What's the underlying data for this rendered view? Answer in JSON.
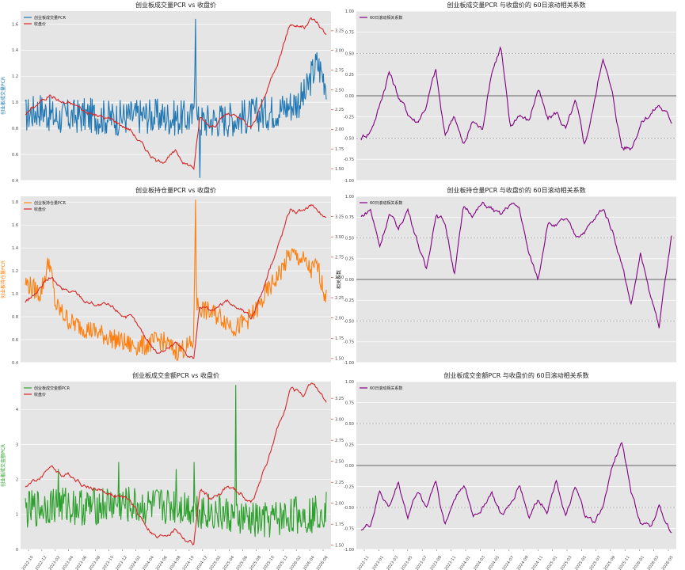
{
  "chart_data": [
    {
      "type": "line",
      "title": "创业板成交量PCR vs 收盘价",
      "ylabel_left": "创业板成交量PCR",
      "ylabel_right": "",
      "color_left": "#1f77b4",
      "color_right": "#d62728",
      "ylim_left": [
        0.4,
        1.7
      ],
      "ylim_right": [
        1.35,
        3.5
      ],
      "yticks_left": [
        "0.4",
        "0.6",
        "0.8",
        "1.0",
        "1.2",
        "1.4",
        "1.6"
      ],
      "yticks_right": [
        "1.50",
        "1.75",
        "2.00",
        "2.25",
        "2.50",
        "2.75",
        "3.00",
        "3.25"
      ],
      "legend": [
        "创业板成交量PCR",
        "收盘价"
      ],
      "series_left": {
        "name": "创业板成交量PCR",
        "kind": "noisy",
        "amplitude": 0.14,
        "x": [
          0,
          0.05,
          0.1,
          0.2,
          0.3,
          0.4,
          0.5,
          0.56,
          0.565,
          0.57,
          0.6,
          0.7,
          0.8,
          0.85,
          0.9,
          0.93,
          0.95,
          0.97,
          1
        ],
        "y": [
          0.9,
          0.95,
          0.88,
          0.9,
          0.88,
          0.9,
          0.88,
          0.88,
          1.6,
          0.85,
          0.86,
          0.88,
          0.92,
          0.95,
          1.0,
          1.05,
          1.2,
          1.3,
          1.15
        ],
        "spikes": [
          [
            0.565,
            1.64
          ],
          [
            0.58,
            0.42
          ]
        ]
      },
      "series_right": {
        "name": "收盘价",
        "kind": "smooth",
        "amplitude": 0.04,
        "x": [
          0,
          0.05,
          0.08,
          0.12,
          0.17,
          0.2,
          0.3,
          0.35,
          0.4,
          0.44,
          0.5,
          0.53,
          0.56,
          0.58,
          0.62,
          0.67,
          0.72,
          0.75,
          0.8,
          0.85,
          0.88,
          0.93,
          0.95,
          0.97,
          1
        ],
        "y": [
          2.2,
          2.35,
          2.45,
          2.35,
          2.3,
          2.22,
          2.1,
          2.0,
          1.75,
          1.58,
          1.7,
          1.58,
          1.52,
          2.15,
          2.05,
          2.2,
          2.1,
          2.0,
          2.45,
          3.0,
          3.35,
          3.3,
          3.4,
          3.35,
          3.2
        ]
      }
    },
    {
      "type": "line",
      "title": "创业板成交量PCR 与收盘价的 60日滚动相关系数",
      "ylabel_left": "",
      "color_left": "#800080",
      "ylim_left": [
        -1.0,
        1.0
      ],
      "yticks_left": [
        "-1.00",
        "-0.75",
        "-0.50",
        "-0.25",
        "0.00",
        "0.25",
        "0.50",
        "0.75",
        "1.00"
      ],
      "reference_lines": [
        0.5,
        0.0,
        -0.5
      ],
      "legend": [
        "60日滚动相关系数"
      ],
      "series_left": {
        "name": "60日滚动相关系数",
        "kind": "smooth",
        "amplitude": 0.06,
        "x": [
          0,
          0.03,
          0.06,
          0.09,
          0.12,
          0.15,
          0.18,
          0.21,
          0.24,
          0.27,
          0.3,
          0.33,
          0.36,
          0.39,
          0.42,
          0.45,
          0.48,
          0.51,
          0.54,
          0.57,
          0.6,
          0.63,
          0.66,
          0.69,
          0.72,
          0.75,
          0.78,
          0.81,
          0.84,
          0.87,
          0.9,
          0.93,
          0.96,
          1
        ],
        "y": [
          -0.5,
          -0.4,
          -0.1,
          0.3,
          0.0,
          -0.2,
          -0.3,
          -0.1,
          0.3,
          -0.5,
          -0.2,
          -0.6,
          -0.3,
          -0.4,
          0.3,
          0.6,
          -0.4,
          -0.2,
          -0.3,
          0.1,
          -0.3,
          -0.2,
          -0.4,
          -0.1,
          -0.6,
          -0.1,
          0.5,
          0.0,
          -0.6,
          -0.6,
          -0.3,
          -0.2,
          -0.1,
          -0.3
        ]
      }
    },
    {
      "type": "line",
      "title": "创业板持仓量PCR vs 收盘价",
      "ylabel_left": "创业板持仓量PCR",
      "color_left": "#ff7f0e",
      "color_right": "#d62728",
      "ylim_left": [
        0.4,
        1.85
      ],
      "ylim_right": [
        1.45,
        3.5
      ],
      "yticks_left": [
        "0.4",
        "0.6",
        "0.8",
        "1.0",
        "1.2",
        "1.4",
        "1.6",
        "1.8"
      ],
      "yticks_right": [
        "1.50",
        "1.75",
        "2.00",
        "2.25",
        "2.50",
        "2.75",
        "3.00",
        "3.25"
      ],
      "legend": [
        "创业板持仓量PCR",
        "收盘价"
      ],
      "series_left": {
        "name": "创业板持仓量PCR",
        "kind": "noisy",
        "amplitude": 0.09,
        "x": [
          0,
          0.05,
          0.08,
          0.1,
          0.15,
          0.2,
          0.25,
          0.3,
          0.35,
          0.4,
          0.45,
          0.5,
          0.55,
          0.56,
          0.565,
          0.57,
          0.6,
          0.65,
          0.7,
          0.75,
          0.78,
          0.8,
          0.85,
          0.88,
          0.92,
          0.95,
          0.97,
          1
        ],
        "y": [
          1.1,
          1.0,
          1.3,
          0.9,
          0.75,
          0.7,
          0.65,
          0.6,
          0.55,
          0.55,
          0.6,
          0.5,
          0.55,
          0.6,
          1.7,
          0.9,
          0.85,
          0.8,
          0.7,
          0.8,
          0.9,
          1.0,
          1.2,
          1.35,
          1.3,
          1.2,
          1.25,
          0.95
        ],
        "spikes": [
          [
            0.565,
            1.82
          ]
        ]
      },
      "series_right": {
        "name": "收盘价",
        "kind": "smooth",
        "amplitude": 0.04,
        "x": [
          0,
          0.05,
          0.08,
          0.12,
          0.17,
          0.2,
          0.3,
          0.35,
          0.4,
          0.44,
          0.5,
          0.53,
          0.56,
          0.58,
          0.62,
          0.67,
          0.72,
          0.75,
          0.8,
          0.85,
          0.88,
          0.93,
          0.95,
          0.97,
          1
        ],
        "y": [
          2.2,
          2.35,
          2.5,
          2.35,
          2.3,
          2.22,
          2.1,
          2.0,
          1.75,
          1.58,
          1.7,
          1.58,
          1.52,
          2.15,
          2.05,
          2.2,
          2.1,
          2.0,
          2.45,
          3.0,
          3.35,
          3.3,
          3.4,
          3.35,
          3.2
        ]
      }
    },
    {
      "type": "line",
      "title": "创业板持仓量PCR 与收盘价的 60日滚动相关系数",
      "ylabel_left": "相关系数",
      "color_left": "#800080",
      "ylim_left": [
        -1.0,
        1.0
      ],
      "yticks_left": [
        "-1.00",
        "-0.75",
        "-0.50",
        "-0.25",
        "0.00",
        "0.25",
        "0.50",
        "0.75",
        "1.00"
      ],
      "reference_lines": [
        0.5,
        0.0,
        -0.5
      ],
      "legend": [
        "60日滚动相关系数"
      ],
      "series_left": {
        "name": "60日滚动相关系数",
        "kind": "smooth",
        "amplitude": 0.05,
        "x": [
          0,
          0.03,
          0.06,
          0.09,
          0.12,
          0.15,
          0.18,
          0.21,
          0.24,
          0.27,
          0.3,
          0.33,
          0.36,
          0.39,
          0.42,
          0.45,
          0.48,
          0.51,
          0.54,
          0.57,
          0.6,
          0.63,
          0.66,
          0.69,
          0.72,
          0.75,
          0.78,
          0.81,
          0.84,
          0.87,
          0.9,
          0.93,
          0.96,
          1
        ],
        "y": [
          0.75,
          0.85,
          0.4,
          0.8,
          0.6,
          0.85,
          0.5,
          0.1,
          0.8,
          0.7,
          0.1,
          0.85,
          0.8,
          0.9,
          0.85,
          0.75,
          0.9,
          0.85,
          0.3,
          0.0,
          0.7,
          0.65,
          0.7,
          0.5,
          0.6,
          0.7,
          0.85,
          0.6,
          0.2,
          -0.3,
          0.3,
          -0.2,
          -0.55,
          0.5
        ]
      }
    },
    {
      "type": "line",
      "title": "创业板成交金额PCR vs 收盘价",
      "ylabel_left": "创业板成交金额PCR",
      "color_left": "#2ca02c",
      "color_right": "#d62728",
      "ylim_left": [
        0,
        4.8
      ],
      "ylim_right": [
        1.45,
        3.45
      ],
      "yticks_left": [
        "0",
        "1",
        "2",
        "3",
        "4"
      ],
      "yticks_right": [
        "1.50",
        "1.75",
        "2.00",
        "2.25",
        "2.50",
        "2.75",
        "3.00",
        "3.25"
      ],
      "legend": [
        "创业板成交金额PCR",
        "收盘价"
      ],
      "xticks": [
        "2022-10",
        "2022-12",
        "2023-02",
        "2023-04",
        "2023-06",
        "2023-08",
        "2023-10",
        "2023-12",
        "2024-02",
        "2024-04",
        "2024-06",
        "2024-08",
        "2024-10",
        "2024-12",
        "2025-02",
        "2025-04",
        "2025-06",
        "2025-08",
        "2025-10",
        "2025-12",
        "2026-02",
        "2026-04",
        "2026-06"
      ],
      "series_left": {
        "name": "创业板成交金额PCR",
        "kind": "noisy",
        "amplitude": 0.55,
        "x": [
          0,
          0.1,
          0.2,
          0.3,
          0.4,
          0.5,
          0.55,
          0.6,
          0.65,
          0.7,
          0.75,
          0.8,
          0.85,
          0.9,
          0.95,
          1
        ],
        "y": [
          1.1,
          1.3,
          1.2,
          1.3,
          1.2,
          1.25,
          1.2,
          1.1,
          1.0,
          0.9,
          0.8,
          0.8,
          0.9,
          1.0,
          1.0,
          1.2
        ],
        "spikes": [
          [
            0.11,
            2.3
          ],
          [
            0.31,
            2.5
          ],
          [
            0.5,
            2.3
          ],
          [
            0.7,
            4.7
          ],
          [
            0.56,
            2.5
          ]
        ]
      },
      "series_right": {
        "name": "收盘价",
        "kind": "smooth",
        "amplitude": 0.04,
        "x": [
          0,
          0.05,
          0.08,
          0.12,
          0.17,
          0.2,
          0.3,
          0.35,
          0.4,
          0.44,
          0.5,
          0.53,
          0.56,
          0.58,
          0.62,
          0.67,
          0.72,
          0.75,
          0.8,
          0.85,
          0.88,
          0.93,
          0.95,
          0.97,
          1
        ],
        "y": [
          2.2,
          2.3,
          2.45,
          2.35,
          2.3,
          2.22,
          2.1,
          2.0,
          1.75,
          1.58,
          1.7,
          1.58,
          1.52,
          2.15,
          2.05,
          2.2,
          2.1,
          2.0,
          2.45,
          3.0,
          3.35,
          3.3,
          3.4,
          3.35,
          3.2
        ]
      }
    },
    {
      "type": "line",
      "title": "创业板成交金额PCR 与收盘价的 60日滚动相关系数",
      "ylabel_left": "",
      "color_left": "#800080",
      "ylim_left": [
        -1.0,
        1.0
      ],
      "yticks_left": [
        "-1.00",
        "-0.75",
        "-0.50",
        "-0.25",
        "0.00",
        "0.25",
        "0.50",
        "0.75",
        "1.00"
      ],
      "reference_lines": [
        0.5,
        0.0,
        -0.5
      ],
      "legend": [
        "60日滚动相关系数"
      ],
      "xticks": [
        "2022-11",
        "2023-01",
        "2023-03",
        "2023-05",
        "2023-07",
        "2023-09",
        "2023-11",
        "2024-01",
        "2024-03",
        "2024-05",
        "2024-07",
        "2024-09",
        "2024-11",
        "2025-01",
        "2025-03",
        "2025-05",
        "2025-07",
        "2025-09",
        "2025-11",
        "2026-01",
        "2026-03",
        "2026-05"
      ],
      "series_left": {
        "name": "60日滚动相关系数",
        "kind": "smooth",
        "amplitude": 0.05,
        "x": [
          0,
          0.03,
          0.06,
          0.09,
          0.12,
          0.15,
          0.18,
          0.21,
          0.24,
          0.27,
          0.3,
          0.33,
          0.36,
          0.39,
          0.42,
          0.45,
          0.48,
          0.51,
          0.54,
          0.57,
          0.6,
          0.63,
          0.66,
          0.69,
          0.72,
          0.75,
          0.78,
          0.81,
          0.84,
          0.87,
          0.9,
          0.93,
          0.96,
          1
        ],
        "y": [
          -0.75,
          -0.7,
          -0.3,
          -0.5,
          -0.2,
          -0.6,
          -0.3,
          -0.5,
          -0.15,
          -0.7,
          -0.4,
          -0.2,
          -0.6,
          -0.5,
          -0.3,
          -0.6,
          -0.5,
          -0.2,
          -0.6,
          -0.4,
          -0.5,
          -0.15,
          -0.6,
          -0.3,
          -0.6,
          -0.7,
          -0.5,
          0.0,
          0.3,
          -0.3,
          -0.7,
          -0.75,
          -0.5,
          -0.8
        ]
      }
    }
  ]
}
